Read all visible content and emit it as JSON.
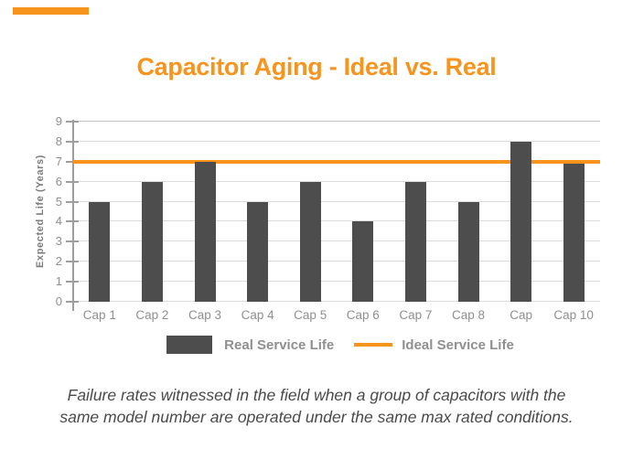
{
  "accent_color": "#F7941E",
  "chart_data": {
    "type": "bar",
    "title": "Capacitor Aging - Ideal vs. Real",
    "title_color": "#F7941E",
    "ylabel": "Expected Life (Years)",
    "xlabel": "",
    "ylim": [
      0,
      9
    ],
    "yticks": [
      0,
      1,
      2,
      3,
      4,
      5,
      6,
      7,
      8,
      9
    ],
    "grid": "horizontal",
    "legend_position": "bottom",
    "categories": [
      "Cap 1",
      "Cap 2",
      "Cap 3",
      "Cap 4",
      "Cap 5",
      "Cap 6",
      "Cap 7",
      "Cap 8",
      "Cap",
      "Cap 10"
    ],
    "series": [
      {
        "name": "Real Service Life",
        "type": "bar",
        "color": "#4D4D4D",
        "values": [
          5,
          6,
          7,
          5,
          6,
          4,
          6,
          5,
          8,
          6.9
        ]
      },
      {
        "name": "Ideal Service Life",
        "type": "line",
        "color": "#F7941E",
        "values": [
          7,
          7,
          7,
          7,
          7,
          7,
          7,
          7,
          7,
          7
        ]
      }
    ]
  },
  "caption": {
    "line1": "Failure rates witnessed in the field when a group of capacitors with the",
    "line2": "same model number are operated under the same max rated conditions."
  }
}
